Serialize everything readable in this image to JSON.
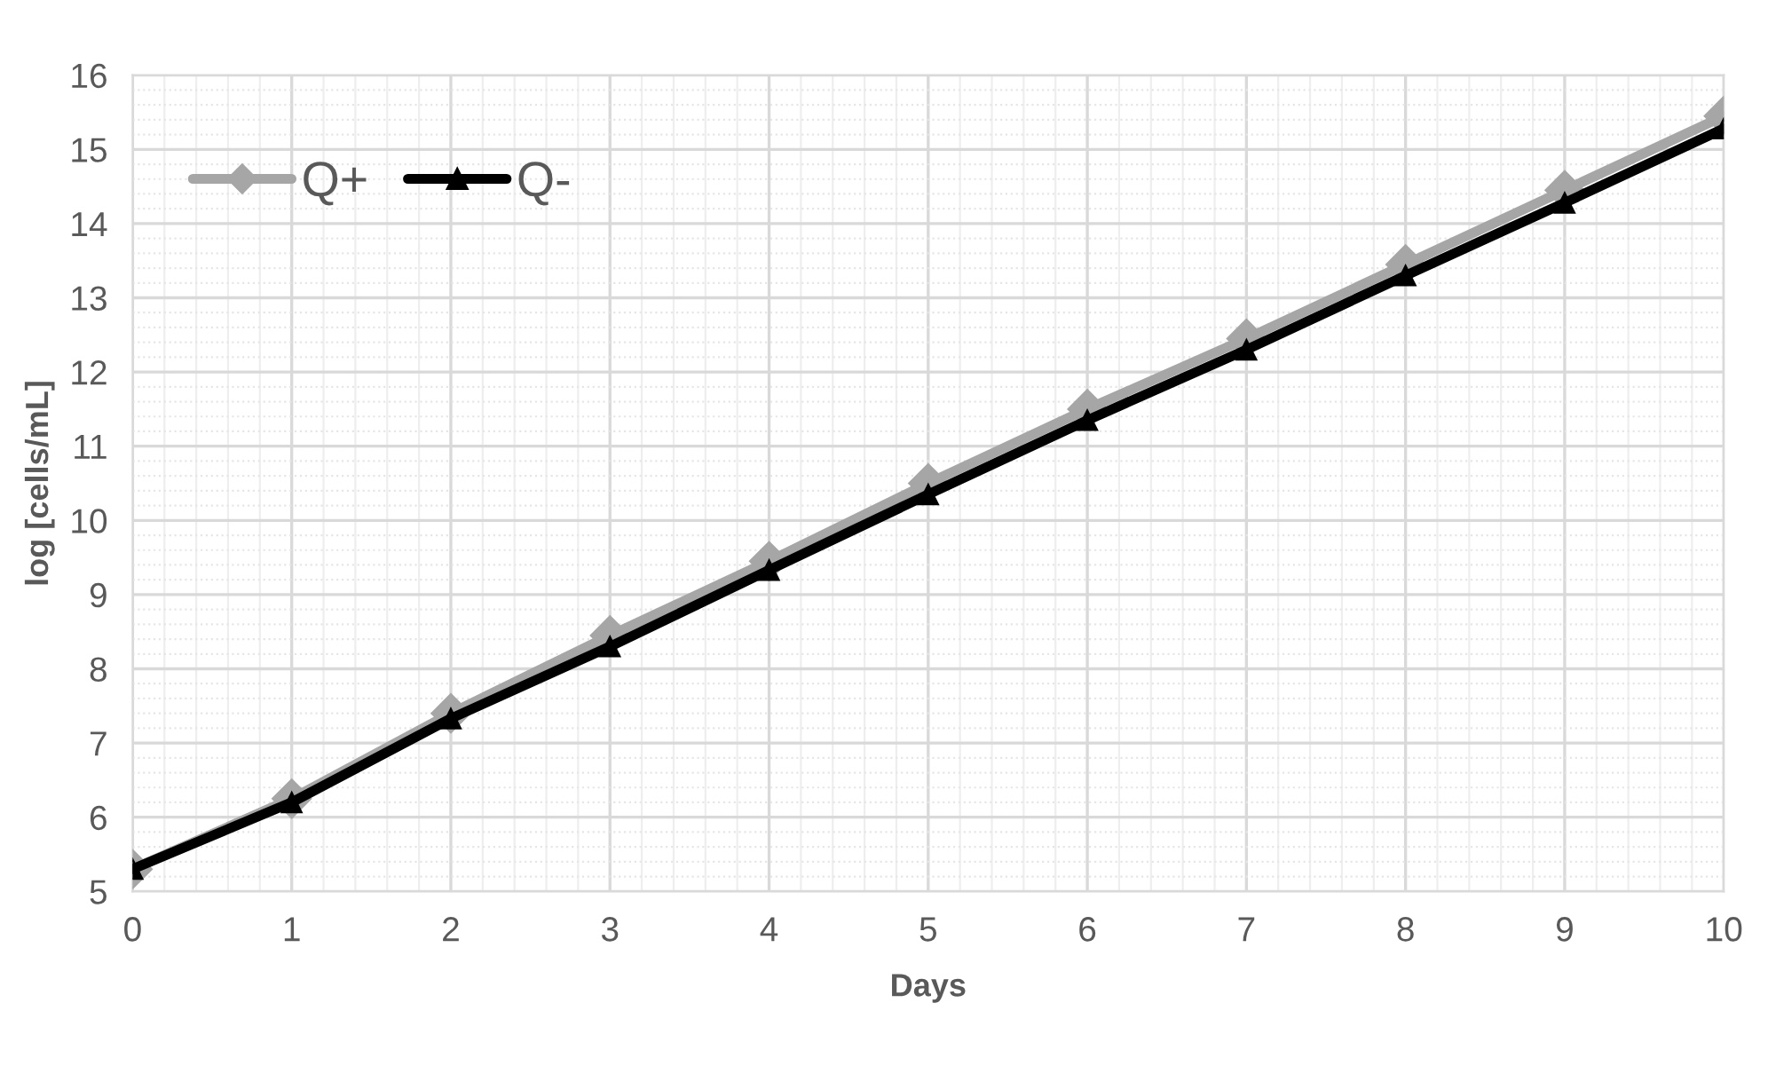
{
  "chart_data": {
    "type": "line",
    "xlabel": "Days",
    "ylabel": "log [cells/mL]",
    "x": [
      0,
      1,
      2,
      3,
      4,
      5,
      6,
      7,
      8,
      9,
      10
    ],
    "series": [
      {
        "name": "Q+",
        "color": "#a6a6a6",
        "marker": "diamond",
        "values": [
          5.3,
          6.25,
          7.4,
          8.45,
          9.45,
          10.5,
          11.5,
          12.45,
          13.45,
          14.45,
          15.45
        ]
      },
      {
        "name": "Q-",
        "color": "#000000",
        "marker": "triangle",
        "values": [
          5.3,
          6.2,
          7.33,
          8.3,
          9.33,
          10.35,
          11.35,
          12.3,
          13.3,
          14.28,
          15.28
        ]
      }
    ],
    "xlim": [
      0,
      10
    ],
    "xticks": [
      0,
      1,
      2,
      3,
      4,
      5,
      6,
      7,
      8,
      9,
      10
    ],
    "ylim": [
      5,
      16
    ],
    "yticks": [
      5,
      6,
      7,
      8,
      9,
      10,
      11,
      12,
      13,
      14,
      15,
      16
    ],
    "grid": true,
    "legend": "top left",
    "line_style": "solid"
  }
}
